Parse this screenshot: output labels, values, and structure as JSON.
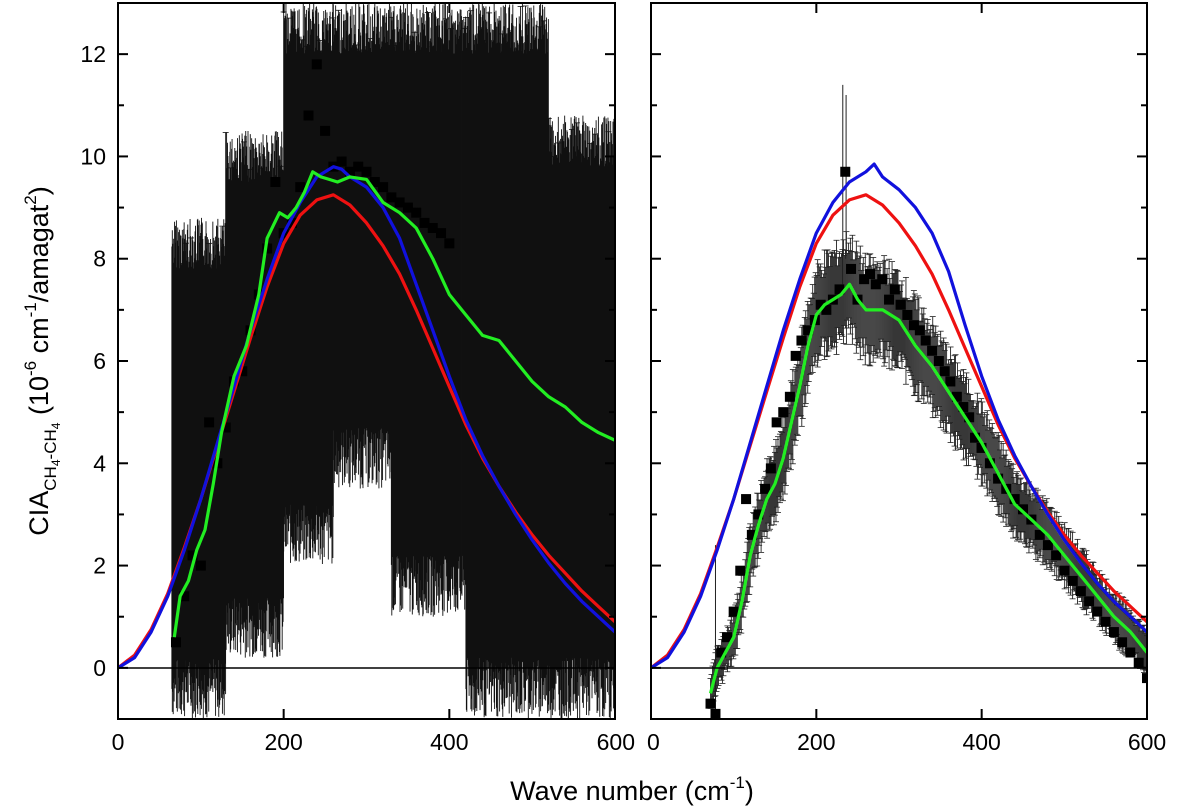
{
  "chart_data": {
    "type": "scatter",
    "xlabel": {
      "main": "Wave number (cm",
      "sup": "-1",
      "end": ")"
    },
    "ylabel": {
      "prefix": "CIA",
      "sub1": "CH",
      "sub1s": "4",
      "subdash": "-CH",
      "sub2s": "4",
      "unit_open": " (10",
      "sup1": "-6",
      "unit_mid": " cm",
      "sup2": "-1",
      "unit_mid2": "/amagat",
      "sup3": "2",
      "unit_close": ")"
    },
    "xlim": [
      0,
      600
    ],
    "ylim": [
      -1,
      13
    ],
    "xticks": [
      0,
      200,
      400,
      600
    ],
    "yticks": [
      0,
      2,
      4,
      6,
      8,
      10,
      12
    ],
    "grid": false,
    "legend": "none",
    "colors": {
      "red": "#ee1111",
      "blue": "#1111dd",
      "green": "#22ee22",
      "points": "#000000",
      "zero_line": "#000000"
    },
    "panels": [
      {
        "name": "left",
        "series": [
          {
            "color": "red",
            "x": [
              0,
              20,
              40,
              60,
              80,
              100,
              120,
              140,
              160,
              180,
              200,
              220,
              240,
              260,
              280,
              300,
              320,
              340,
              360,
              380,
              400,
              420,
              440,
              460,
              480,
              500,
              520,
              540,
              560,
              580,
              600
            ],
            "y": [
              0,
              0.25,
              0.75,
              1.45,
              2.35,
              3.3,
              4.35,
              5.4,
              6.45,
              7.45,
              8.3,
              8.85,
              9.15,
              9.25,
              9.05,
              8.7,
              8.25,
              7.7,
              7.0,
              6.25,
              5.5,
              4.75,
              4.1,
              3.55,
              3.05,
              2.6,
              2.2,
              1.85,
              1.5,
              1.2,
              0.9
            ]
          },
          {
            "color": "blue",
            "x": [
              0,
              20,
              40,
              60,
              80,
              100,
              120,
              140,
              160,
              180,
              200,
              220,
              240,
              260,
              270,
              280,
              300,
              320,
              340,
              360,
              380,
              400,
              420,
              440,
              460,
              480,
              500,
              520,
              540,
              560,
              580,
              600
            ],
            "y": [
              0,
              0.2,
              0.7,
              1.4,
              2.3,
              3.3,
              4.4,
              5.5,
              6.6,
              7.6,
              8.5,
              9.1,
              9.6,
              9.8,
              9.75,
              9.6,
              9.4,
              9.0,
              8.4,
              7.5,
              6.6,
              5.7,
              4.85,
              4.15,
              3.55,
              3.0,
              2.5,
              2.05,
              1.65,
              1.3,
              1.0,
              0.7
            ]
          },
          {
            "color": "green",
            "x": [
              68,
              75,
              85,
              95,
              105,
              115,
              125,
              140,
              155,
              170,
              180,
              195,
              205,
              215,
              225,
              235,
              245,
              255,
              265,
              280,
              300,
              320,
              340,
              360,
              380,
              400,
              420,
              440,
              460,
              480,
              500,
              520,
              540,
              560,
              580,
              600
            ],
            "y": [
              0.6,
              1.4,
              1.7,
              2.3,
              2.7,
              3.6,
              4.6,
              5.7,
              6.3,
              7.3,
              8.4,
              8.9,
              8.8,
              9.0,
              9.3,
              9.7,
              9.6,
              9.55,
              9.5,
              9.6,
              9.55,
              9.1,
              8.9,
              8.6,
              8.0,
              7.3,
              6.9,
              6.5,
              6.4,
              6.0,
              5.6,
              5.3,
              5.1,
              4.8,
              4.6,
              4.45
            ]
          }
        ],
        "points_x": [
          70,
          80,
          90,
          100,
          110,
          120,
          130,
          140,
          150,
          160,
          170,
          180,
          190,
          200,
          210,
          220,
          230,
          240,
          250,
          260,
          270,
          280,
          290,
          300,
          310,
          320,
          330,
          340,
          350,
          360,
          370,
          380,
          390,
          400
        ],
        "points_y": [
          0.5,
          1.4,
          2.2,
          2.0,
          4.8,
          4.0,
          4.7,
          5.6,
          5.8,
          6.6,
          7.3,
          8.2,
          9.5,
          8.5,
          8.7,
          9.4,
          10.8,
          11.8,
          10.5,
          9.8,
          9.9,
          9.7,
          9.8,
          9.7,
          9.5,
          9.4,
          9.2,
          9.1,
          9.0,
          8.9,
          8.7,
          8.6,
          8.5,
          8.3
        ],
        "err_segments": [
          {
            "x_from": 65,
            "x_to": 130,
            "lo": -1.0,
            "hi": 8.8
          },
          {
            "x_from": 130,
            "x_to": 200,
            "lo": 0.2,
            "hi": 10.5
          },
          {
            "x_from": 200,
            "x_to": 260,
            "lo": 2.0,
            "hi": 13.0
          },
          {
            "x_from": 260,
            "x_to": 330,
            "lo": 3.5,
            "hi": 13.0
          },
          {
            "x_from": 330,
            "x_to": 420,
            "lo": 1.0,
            "hi": 13.0
          },
          {
            "x_from": 420,
            "x_to": 520,
            "lo": -1.0,
            "hi": 13.0
          },
          {
            "x_from": 520,
            "x_to": 600,
            "lo": -1.0,
            "hi": 10.8
          }
        ]
      },
      {
        "name": "right",
        "series": [
          {
            "color": "red",
            "x": [
              0,
              20,
              40,
              60,
              80,
              100,
              120,
              140,
              160,
              180,
              200,
              220,
              240,
              260,
              280,
              300,
              320,
              340,
              360,
              380,
              400,
              420,
              440,
              460,
              480,
              500,
              520,
              540,
              560,
              580,
              600
            ],
            "y": [
              0,
              0.25,
              0.75,
              1.45,
              2.35,
              3.3,
              4.35,
              5.4,
              6.45,
              7.45,
              8.3,
              8.85,
              9.15,
              9.25,
              9.05,
              8.7,
              8.25,
              7.7,
              7.0,
              6.25,
              5.5,
              4.75,
              4.1,
              3.55,
              3.05,
              2.6,
              2.2,
              1.85,
              1.5,
              1.2,
              0.9
            ]
          },
          {
            "color": "blue",
            "x": [
              0,
              20,
              40,
              60,
              80,
              100,
              120,
              140,
              160,
              180,
              200,
              220,
              240,
              260,
              270,
              280,
              300,
              320,
              340,
              360,
              380,
              400,
              420,
              440,
              460,
              480,
              500,
              520,
              540,
              560,
              580,
              600
            ],
            "y": [
              0,
              0.2,
              0.7,
              1.4,
              2.3,
              3.3,
              4.4,
              5.5,
              6.6,
              7.6,
              8.5,
              9.1,
              9.5,
              9.7,
              9.85,
              9.6,
              9.35,
              9.0,
              8.5,
              7.75,
              6.7,
              5.7,
              4.85,
              4.15,
              3.55,
              3.0,
              2.5,
              2.05,
              1.65,
              1.3,
              1.0,
              0.7
            ]
          },
          {
            "color": "green",
            "x": [
              72,
              80,
              90,
              100,
              110,
              120,
              130,
              140,
              150,
              160,
              170,
              180,
              190,
              200,
              210,
              220,
              230,
              240,
              250,
              260,
              280,
              300,
              320,
              340,
              360,
              380,
              400,
              420,
              440,
              460,
              480,
              500,
              520,
              540,
              560,
              580,
              600
            ],
            "y": [
              -0.5,
              0.0,
              0.3,
              0.6,
              1.3,
              2.2,
              2.8,
              3.3,
              3.6,
              4.1,
              4.8,
              5.5,
              6.3,
              6.9,
              7.1,
              7.2,
              7.3,
              7.5,
              7.2,
              7.0,
              7.0,
              6.8,
              6.3,
              5.9,
              5.4,
              4.9,
              4.4,
              3.8,
              3.2,
              2.9,
              2.6,
              2.2,
              1.8,
              1.4,
              1.0,
              0.7,
              0.3
            ]
          }
        ],
        "points_x": [
          72,
          78,
          85,
          92,
          100,
          108,
          115,
          122,
          130,
          138,
          145,
          152,
          160,
          168,
          175,
          182,
          190,
          198,
          205,
          212,
          220,
          228,
          235,
          242,
          250,
          258,
          265,
          272,
          280,
          288,
          295,
          302,
          310,
          318,
          325,
          332,
          340,
          348,
          355,
          362,
          370,
          378,
          385,
          392,
          400,
          410,
          420,
          430,
          440,
          450,
          460,
          470,
          480,
          490,
          500,
          510,
          520,
          530,
          540,
          550,
          560,
          570,
          580,
          590,
          600
        ],
        "points_y": [
          -0.7,
          -0.9,
          0.3,
          0.6,
          1.1,
          1.9,
          3.3,
          2.6,
          3.0,
          3.5,
          3.9,
          4.8,
          5.0,
          5.3,
          6.1,
          6.4,
          6.6,
          6.8,
          7.1,
          7.0,
          7.2,
          7.4,
          9.7,
          7.8,
          7.2,
          7.6,
          7.7,
          7.5,
          7.6,
          7.2,
          7.4,
          7.1,
          6.9,
          6.7,
          6.6,
          6.4,
          6.2,
          6.0,
          5.8,
          5.6,
          5.3,
          5.1,
          4.9,
          4.5,
          4.3,
          4.0,
          3.7,
          3.5,
          3.3,
          3.1,
          2.9,
          2.6,
          2.4,
          2.2,
          1.9,
          1.7,
          1.5,
          1.3,
          1.1,
          0.9,
          0.7,
          0.5,
          0.3,
          0.1,
          -0.2
        ],
        "err_scale": 0.6
      }
    ]
  }
}
